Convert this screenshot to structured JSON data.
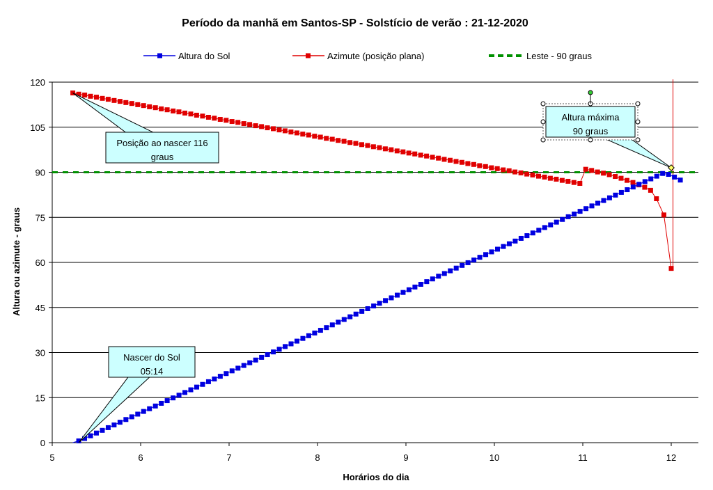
{
  "chart_data": {
    "type": "line",
    "title": "Período da manhã em Santos-SP  -  Solstício de verão : 21-12-2020",
    "xlabel": "Horários do dia",
    "ylabel": "Altura ou azimute - graus",
    "xlim": [
      5,
      12.3
    ],
    "ylim": [
      0,
      120
    ],
    "x_ticks": [
      "5",
      "6",
      "7",
      "8",
      "9",
      "10",
      "11",
      "12"
    ],
    "y_ticks": [
      "0",
      "15",
      "30",
      "45",
      "60",
      "75",
      "90",
      "105",
      "120"
    ],
    "grid": "horizontal",
    "legend_position": "top",
    "series": [
      {
        "name": "Altura do Sol",
        "color": "#0000e0",
        "marker": "square",
        "start_x": 5.233,
        "step_x": 0.0667,
        "values": [
          0.0,
          0.6,
          1.4,
          2.3,
          3.2,
          4.1,
          5.0,
          5.9,
          6.8,
          7.7,
          8.6,
          9.5,
          10.4,
          11.3,
          12.2,
          13.1,
          14.0,
          14.9,
          15.8,
          16.7,
          17.6,
          18.5,
          19.4,
          20.3,
          21.2,
          22.1,
          23.0,
          23.9,
          24.8,
          25.7,
          26.6,
          27.5,
          28.4,
          29.3,
          30.2,
          31.1,
          32.0,
          32.9,
          33.8,
          34.7,
          35.6,
          36.5,
          37.4,
          38.3,
          39.2,
          40.1,
          41.0,
          41.9,
          42.8,
          43.7,
          44.6,
          45.5,
          46.4,
          47.3,
          48.2,
          49.1,
          50.0,
          50.9,
          51.8,
          52.7,
          53.6,
          54.5,
          55.4,
          56.3,
          57.2,
          58.1,
          59.0,
          59.9,
          60.8,
          61.7,
          62.6,
          63.5,
          64.4,
          65.3,
          66.2,
          67.1,
          68.0,
          68.9,
          69.8,
          70.7,
          71.6,
          72.5,
          73.4,
          74.3,
          75.2,
          76.1,
          77.0,
          77.9,
          78.8,
          79.7,
          80.6,
          81.5,
          82.4,
          83.3,
          84.2,
          85.1,
          86.0,
          86.9,
          87.8,
          88.7,
          89.6,
          89.3,
          88.4,
          87.4
        ]
      },
      {
        "name": "Azimute (posição plana)",
        "color": "#e00000",
        "marker": "square",
        "points": [
          [
            5.233,
            116.4
          ],
          [
            5.3,
            116.0
          ],
          [
            5.367,
            115.7
          ],
          [
            5.433,
            115.3
          ],
          [
            5.5,
            115.0
          ],
          [
            5.567,
            114.6
          ],
          [
            5.633,
            114.3
          ],
          [
            5.7,
            113.9
          ],
          [
            5.767,
            113.6
          ],
          [
            5.833,
            113.2
          ],
          [
            5.9,
            112.9
          ],
          [
            5.967,
            112.5
          ],
          [
            6.033,
            112.2
          ],
          [
            6.1,
            111.8
          ],
          [
            6.167,
            111.5
          ],
          [
            6.233,
            111.1
          ],
          [
            6.3,
            110.8
          ],
          [
            6.367,
            110.4
          ],
          [
            6.433,
            110.1
          ],
          [
            6.5,
            109.7
          ],
          [
            6.567,
            109.4
          ],
          [
            6.633,
            109.0
          ],
          [
            6.7,
            108.7
          ],
          [
            6.767,
            108.3
          ],
          [
            6.833,
            108.0
          ],
          [
            6.9,
            107.6
          ],
          [
            6.967,
            107.3
          ],
          [
            7.033,
            106.9
          ],
          [
            7.1,
            106.6
          ],
          [
            7.167,
            106.2
          ],
          [
            7.233,
            105.9
          ],
          [
            7.3,
            105.5
          ],
          [
            7.367,
            105.2
          ],
          [
            7.433,
            104.8
          ],
          [
            7.5,
            104.5
          ],
          [
            7.567,
            104.1
          ],
          [
            7.633,
            103.8
          ],
          [
            7.7,
            103.4
          ],
          [
            7.767,
            103.1
          ],
          [
            7.833,
            102.7
          ],
          [
            7.9,
            102.4
          ],
          [
            7.967,
            102.0
          ],
          [
            8.033,
            101.7
          ],
          [
            8.1,
            101.3
          ],
          [
            8.167,
            101.0
          ],
          [
            8.233,
            100.6
          ],
          [
            8.3,
            100.3
          ],
          [
            8.367,
            99.9
          ],
          [
            8.433,
            99.6
          ],
          [
            8.5,
            99.2
          ],
          [
            8.567,
            98.9
          ],
          [
            8.633,
            98.5
          ],
          [
            8.7,
            98.2
          ],
          [
            8.767,
            97.8
          ],
          [
            8.833,
            97.5
          ],
          [
            8.9,
            97.1
          ],
          [
            8.967,
            96.8
          ],
          [
            9.033,
            96.4
          ],
          [
            9.1,
            96.1
          ],
          [
            9.167,
            95.7
          ],
          [
            9.233,
            95.4
          ],
          [
            9.3,
            95.0
          ],
          [
            9.367,
            94.7
          ],
          [
            9.433,
            94.3
          ],
          [
            9.5,
            94.0
          ],
          [
            9.567,
            93.6
          ],
          [
            9.633,
            93.3
          ],
          [
            9.7,
            92.9
          ],
          [
            9.767,
            92.6
          ],
          [
            9.833,
            92.2
          ],
          [
            9.9,
            91.9
          ],
          [
            9.967,
            91.5
          ],
          [
            10.033,
            91.2
          ],
          [
            10.1,
            90.8
          ],
          [
            10.167,
            90.5
          ],
          [
            10.233,
            90.1
          ],
          [
            10.3,
            89.8
          ],
          [
            10.367,
            89.4
          ],
          [
            10.433,
            89.1
          ],
          [
            10.5,
            88.7
          ],
          [
            10.567,
            88.4
          ],
          [
            10.633,
            88.0
          ],
          [
            10.7,
            87.7
          ],
          [
            10.767,
            87.3
          ],
          [
            10.833,
            87.0
          ],
          [
            10.9,
            86.6
          ],
          [
            10.967,
            86.3
          ],
          [
            11.033,
            91.0
          ],
          [
            11.1,
            90.6
          ],
          [
            11.167,
            90.1
          ],
          [
            11.233,
            89.7
          ],
          [
            11.3,
            89.2
          ],
          [
            11.367,
            88.6
          ],
          [
            11.433,
            88.0
          ],
          [
            11.5,
            87.3
          ],
          [
            11.567,
            86.6
          ],
          [
            11.633,
            85.8
          ],
          [
            11.7,
            85.0
          ],
          [
            11.767,
            84.0
          ],
          [
            11.833,
            81.2
          ],
          [
            11.917,
            75.8
          ],
          [
            12.0,
            58.0
          ]
        ]
      },
      {
        "name": "Leste - 90 graus",
        "color": "#009000",
        "style": "dashed",
        "values": [
          90,
          90
        ],
        "x": [
          5,
          12.3
        ]
      }
    ],
    "annotations": [
      {
        "text_lines": [
          "Posição ao nascer 116",
          "graus"
        ],
        "points_to": [
          5.233,
          116.4
        ]
      },
      {
        "text_lines": [
          "Nascer do Sol",
          "05:14"
        ],
        "points_to": [
          5.3,
          0
        ]
      },
      {
        "text_lines": [
          "Altura máxima",
          "90 graus"
        ],
        "points_to": [
          12.0,
          91.5
        ]
      }
    ]
  }
}
